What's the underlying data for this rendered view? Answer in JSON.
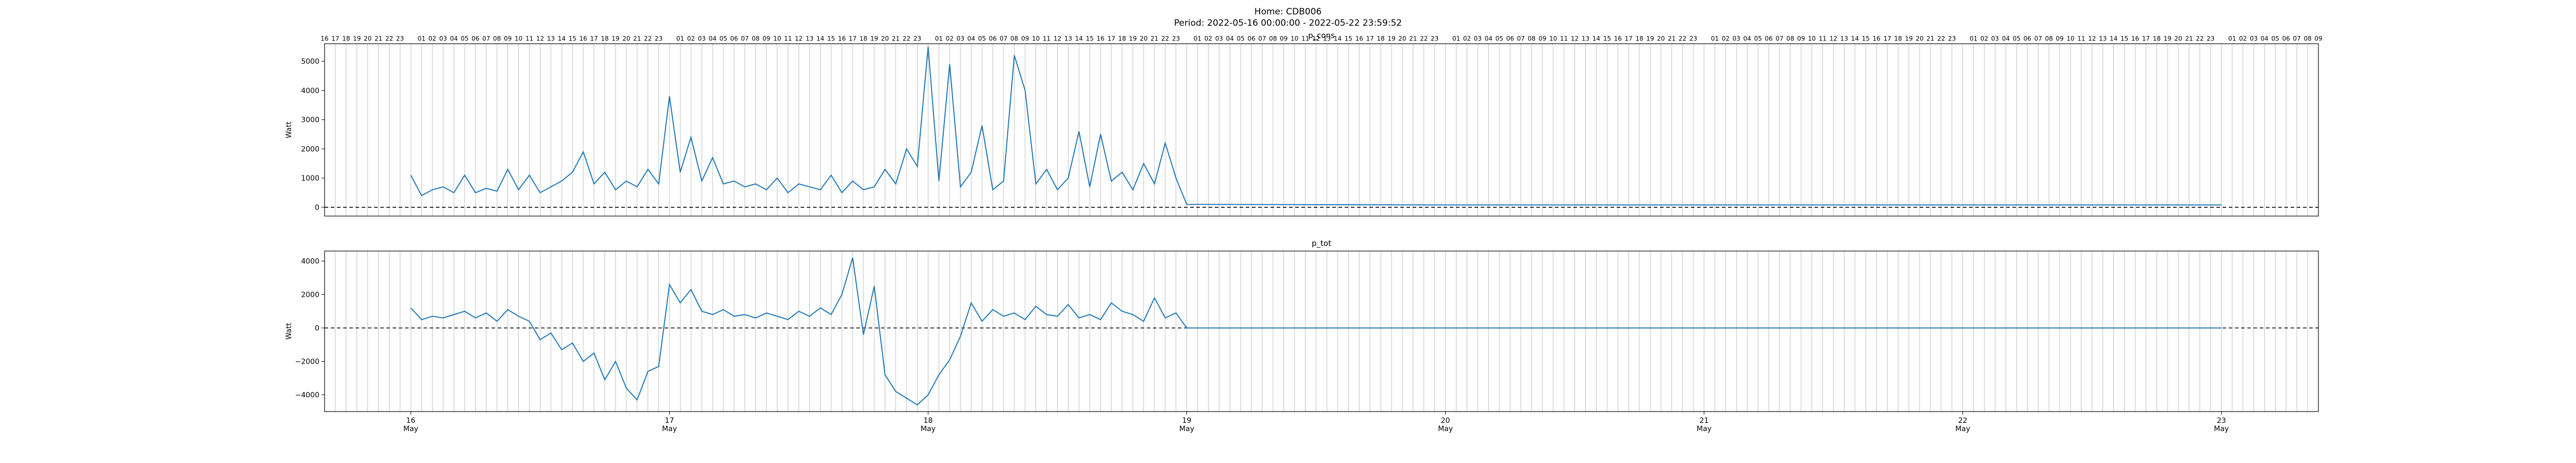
{
  "suptitle_line1": "Home: CDB006",
  "suptitle_line2": "Period: 2022-05-16 00:00:00 - 2022-05-22 23:59:52",
  "colors": {
    "series": "#1f77b4",
    "zero_line": "#000000",
    "hour_grid": "#b0b0b0",
    "axes": "#000000"
  },
  "chart_data": [
    {
      "type": "line",
      "title": "p_cons",
      "ylabel": "Watt",
      "xlim": [
        "2022-05-15T16:00",
        "2022-05-23T09:00"
      ],
      "ylim": [
        -300,
        5600
      ],
      "yticks": [
        0,
        1000,
        2000,
        3000,
        4000,
        5000
      ],
      "hour_ticks_top": true,
      "grid": "vertical hourly lines",
      "reference_line": {
        "y": 0,
        "style": "dashed"
      },
      "series": [
        {
          "x": [
            "2022-05-16T00:00",
            "2022-05-16T01:00",
            "2022-05-16T02:00",
            "2022-05-16T03:00",
            "2022-05-16T04:00",
            "2022-05-16T05:00",
            "2022-05-16T06:00",
            "2022-05-16T07:00",
            "2022-05-16T08:00",
            "2022-05-16T09:00",
            "2022-05-16T10:00",
            "2022-05-16T11:00",
            "2022-05-16T12:00",
            "2022-05-16T13:00",
            "2022-05-16T14:00",
            "2022-05-16T15:00",
            "2022-05-16T16:00",
            "2022-05-16T17:00",
            "2022-05-16T18:00",
            "2022-05-16T19:00",
            "2022-05-16T20:00",
            "2022-05-16T21:00",
            "2022-05-16T22:00",
            "2022-05-16T23:00",
            "2022-05-17T00:00",
            "2022-05-17T01:00",
            "2022-05-17T02:00",
            "2022-05-17T03:00",
            "2022-05-17T04:00",
            "2022-05-17T05:00",
            "2022-05-17T06:00",
            "2022-05-17T07:00",
            "2022-05-17T08:00",
            "2022-05-17T09:00",
            "2022-05-17T10:00",
            "2022-05-17T11:00",
            "2022-05-17T12:00",
            "2022-05-17T13:00",
            "2022-05-17T14:00",
            "2022-05-17T15:00",
            "2022-05-17T16:00",
            "2022-05-17T17:00",
            "2022-05-17T18:00",
            "2022-05-17T19:00",
            "2022-05-17T20:00",
            "2022-05-17T21:00",
            "2022-05-17T22:00",
            "2022-05-17T23:00",
            "2022-05-18T00:00",
            "2022-05-18T01:00",
            "2022-05-18T02:00",
            "2022-05-18T03:00",
            "2022-05-18T04:00",
            "2022-05-18T05:00",
            "2022-05-18T06:00",
            "2022-05-18T07:00",
            "2022-05-18T08:00",
            "2022-05-18T09:00",
            "2022-05-18T10:00",
            "2022-05-18T11:00",
            "2022-05-18T12:00",
            "2022-05-18T13:00",
            "2022-05-18T14:00",
            "2022-05-18T15:00",
            "2022-05-18T16:00",
            "2022-05-18T17:00",
            "2022-05-18T18:00",
            "2022-05-18T19:00",
            "2022-05-18T20:00",
            "2022-05-18T21:00",
            "2022-05-18T22:00",
            "2022-05-18T23:00",
            "2022-05-19T00:00",
            "2022-05-20T00:00",
            "2022-05-21T00:00",
            "2022-05-22T00:00",
            "2022-05-23T00:00"
          ],
          "y": [
            1100,
            400,
            600,
            700,
            500,
            1100,
            500,
            650,
            550,
            1300,
            600,
            1100,
            500,
            700,
            900,
            1200,
            1900,
            800,
            1200,
            600,
            900,
            700,
            1300,
            800,
            3800,
            1200,
            2400,
            900,
            1700,
            800,
            900,
            700,
            800,
            600,
            1000,
            500,
            800,
            700,
            600,
            1100,
            500,
            900,
            600,
            700,
            1300,
            800,
            2000,
            1400,
            5500,
            900,
            4900,
            700,
            1200,
            2800,
            600,
            900,
            5200,
            4000,
            800,
            1300,
            600,
            1000,
            2600,
            700,
            2500,
            900,
            1200,
            600,
            1500,
            800,
            2200,
            1000,
            100,
            80,
            80,
            80,
            80
          ]
        }
      ]
    },
    {
      "type": "line",
      "title": "p_tot",
      "ylabel": "Watt",
      "xlim": [
        "2022-05-15T16:00",
        "2022-05-23T09:00"
      ],
      "ylim": [
        -5000,
        4600
      ],
      "yticks": [
        -4000,
        -2000,
        0,
        2000,
        4000
      ],
      "grid": "vertical hourly lines",
      "reference_line": {
        "y": 0,
        "style": "dashed"
      },
      "xticks": [
        {
          "date": "2022-05-16",
          "day": "16",
          "month": "May"
        },
        {
          "date": "2022-05-17",
          "day": "17",
          "month": "May"
        },
        {
          "date": "2022-05-18",
          "day": "18",
          "month": "May"
        },
        {
          "date": "2022-05-19",
          "day": "19",
          "month": "May"
        },
        {
          "date": "2022-05-20",
          "day": "20",
          "month": "May"
        },
        {
          "date": "2022-05-21",
          "day": "21",
          "month": "May"
        },
        {
          "date": "2022-05-22",
          "day": "22",
          "month": "May"
        },
        {
          "date": "2022-05-23",
          "day": "23",
          "month": "May"
        }
      ],
      "series": [
        {
          "x": [
            "2022-05-16T00:00",
            "2022-05-16T01:00",
            "2022-05-16T02:00",
            "2022-05-16T03:00",
            "2022-05-16T04:00",
            "2022-05-16T05:00",
            "2022-05-16T06:00",
            "2022-05-16T07:00",
            "2022-05-16T08:00",
            "2022-05-16T09:00",
            "2022-05-16T10:00",
            "2022-05-16T11:00",
            "2022-05-16T12:00",
            "2022-05-16T13:00",
            "2022-05-16T14:00",
            "2022-05-16T15:00",
            "2022-05-16T16:00",
            "2022-05-16T17:00",
            "2022-05-16T18:00",
            "2022-05-16T19:00",
            "2022-05-16T20:00",
            "2022-05-16T21:00",
            "2022-05-16T22:00",
            "2022-05-16T23:00",
            "2022-05-17T00:00",
            "2022-05-17T01:00",
            "2022-05-17T02:00",
            "2022-05-17T03:00",
            "2022-05-17T04:00",
            "2022-05-17T05:00",
            "2022-05-17T06:00",
            "2022-05-17T07:00",
            "2022-05-17T08:00",
            "2022-05-17T09:00",
            "2022-05-17T10:00",
            "2022-05-17T11:00",
            "2022-05-17T12:00",
            "2022-05-17T13:00",
            "2022-05-17T14:00",
            "2022-05-17T15:00",
            "2022-05-17T16:00",
            "2022-05-17T17:00",
            "2022-05-17T18:00",
            "2022-05-17T19:00",
            "2022-05-17T20:00",
            "2022-05-17T21:00",
            "2022-05-17T22:00",
            "2022-05-17T23:00",
            "2022-05-18T00:00",
            "2022-05-18T01:00",
            "2022-05-18T02:00",
            "2022-05-18T03:00",
            "2022-05-18T04:00",
            "2022-05-18T05:00",
            "2022-05-18T06:00",
            "2022-05-18T07:00",
            "2022-05-18T08:00",
            "2022-05-18T09:00",
            "2022-05-18T10:00",
            "2022-05-18T11:00",
            "2022-05-18T12:00",
            "2022-05-18T13:00",
            "2022-05-18T14:00",
            "2022-05-18T15:00",
            "2022-05-18T16:00",
            "2022-05-18T17:00",
            "2022-05-18T18:00",
            "2022-05-18T19:00",
            "2022-05-18T20:00",
            "2022-05-18T21:00",
            "2022-05-18T22:00",
            "2022-05-18T23:00",
            "2022-05-19T00:00",
            "2022-05-20T00:00",
            "2022-05-21T00:00",
            "2022-05-22T00:00",
            "2022-05-23T00:00"
          ],
          "y": [
            1200,
            500,
            700,
            600,
            800,
            1000,
            600,
            900,
            400,
            1100,
            700,
            400,
            -700,
            -300,
            -1300,
            -900,
            -2000,
            -1500,
            -3100,
            -2000,
            -3600,
            -4300,
            -2600,
            -2300,
            2600,
            1500,
            2300,
            1000,
            800,
            1100,
            700,
            800,
            600,
            900,
            700,
            500,
            1000,
            700,
            1200,
            800,
            2000,
            4200,
            -400,
            2500,
            -2800,
            -3800,
            -4200,
            -4600,
            -4000,
            -2800,
            -1900,
            -500,
            1500,
            400,
            1100,
            700,
            900,
            500,
            1300,
            800,
            700,
            1400,
            600,
            800,
            500,
            1500,
            1000,
            800,
            400,
            1800,
            600,
            900,
            0,
            0,
            0,
            0,
            0
          ]
        }
      ]
    }
  ]
}
